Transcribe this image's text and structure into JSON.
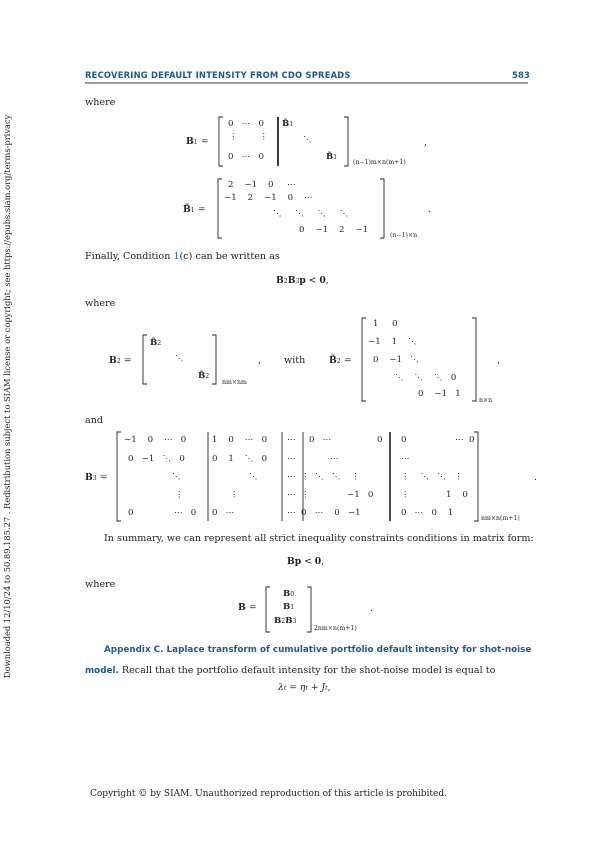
{
  "header": {
    "running_title": "RECOVERING DEFAULT INTENSITY FROM CDO SPREADS",
    "page_number": "583"
  },
  "sidebar": {
    "download_note": "Downloaded 12/10/24 to 50.89.185.27 . Redistribution subject to SIAM license or copyright; see https://epubs.siam.org/terms-privacy"
  },
  "body": {
    "where1": "where",
    "finally_a": "Finally, Condition ",
    "finally_ref": "1",
    "finally_b": "(c) can be written as",
    "where2": "where",
    "with": "with",
    "and": "and",
    "summary": "In summary, we can represent all strict inequality constraints conditions in matrix form:",
    "where3": "where",
    "appendix_title": "Appendix C. Laplace transform of cumulative portfolio default intensity for shot-noise",
    "appendix_title2": "model.",
    "appendix_text": " Recall that the portfolio default intensity for the shot-noise model is equal to"
  },
  "equations": {
    "b1_lhs": "B",
    "b1_sub": "1",
    "eq": "=",
    "b1_sz": "(n−1)m×n(m+1)",
    "comma": ",",
    "period": ".",
    "bt1_sz": "(n−1)×n",
    "cond": "B",
    "cond_rest": "p < 0,",
    "b2_sz": "nm×nm",
    "bt2_sz": "n×n",
    "b3_sz": "nm×n(m+1)",
    "bp": "Bp < 0,",
    "b_sz": "2nm×n(m+1)",
    "lambda": "λ",
    "lambda_rest": " = η",
    "lambda_rest2": " + J",
    "sub_t": "t"
  },
  "footer": {
    "copyright": "Copyright © by SIAM. Unauthorized reproduction of this article is prohibited."
  }
}
